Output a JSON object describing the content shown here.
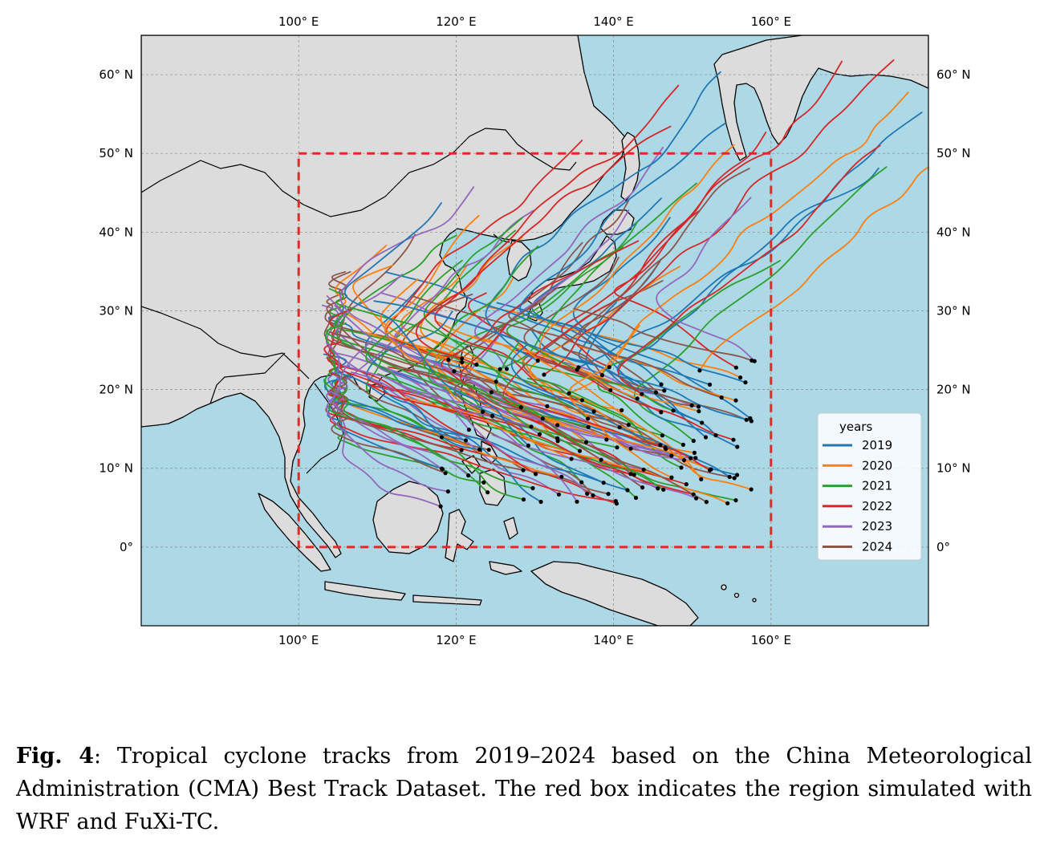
{
  "map": {
    "ocean_color": "#add8e6",
    "land_color": "#dcdcdc",
    "extent": {
      "lon_min": 80,
      "lon_max": 180,
      "lat_min": -10,
      "lat_max": 65
    },
    "lon_ticks": [
      {
        "value": 100,
        "label": "100° E"
      },
      {
        "value": 120,
        "label": "120° E"
      },
      {
        "value": 140,
        "label": "140° E"
      },
      {
        "value": 160,
        "label": "160° E"
      }
    ],
    "lat_ticks": [
      {
        "value": 60,
        "label": "60° N"
      },
      {
        "value": 50,
        "label": "50° N"
      },
      {
        "value": 40,
        "label": "40° N"
      },
      {
        "value": 30,
        "label": "30° N"
      },
      {
        "value": 20,
        "label": "20° N"
      },
      {
        "value": 10,
        "label": "10° N"
      },
      {
        "value": 0,
        "label": "0°"
      }
    ],
    "region_box": {
      "lon_min": 100,
      "lon_max": 160,
      "lat_min": 0,
      "lat_max": 50,
      "color": "#e8262a"
    },
    "legend": {
      "title": "years",
      "placement": "lower-right",
      "entries": [
        {
          "label": "2019",
          "color": "#1f77b4"
        },
        {
          "label": "2020",
          "color": "#ff7f0e"
        },
        {
          "label": "2021",
          "color": "#2ca02c"
        },
        {
          "label": "2022",
          "color": "#d62728"
        },
        {
          "label": "2023",
          "color": "#9467bd"
        },
        {
          "label": "2024",
          "color": "#8c564b"
        }
      ]
    }
  },
  "caption": {
    "label": "Fig. 4",
    "text": ": Tropical cyclone tracks from 2019–2024 based on the China Meteorological Administration (CMA) Best Track Dataset. The red box indicates the region simulated with WRF and FuXi-TC."
  }
}
